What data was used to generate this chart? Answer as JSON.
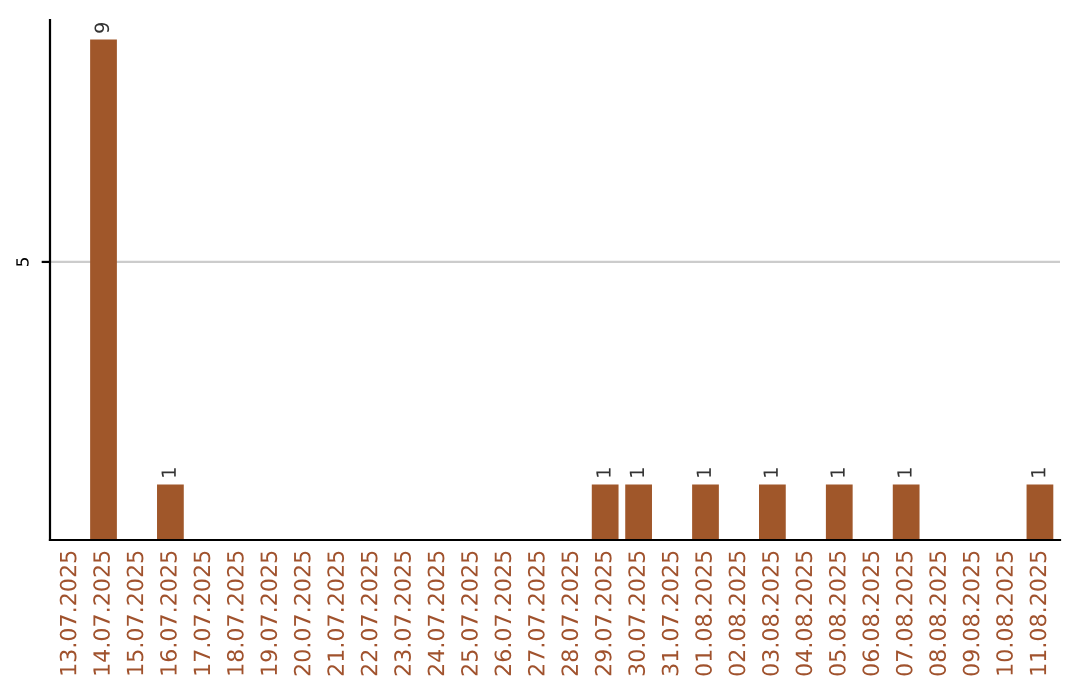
{
  "chart_data": {
    "type": "bar",
    "categories": [
      "13.07.2025",
      "14.07.2025",
      "15.07.2025",
      "16.07.2025",
      "17.07.2025",
      "18.07.2025",
      "19.07.2025",
      "20.07.2025",
      "21.07.2025",
      "22.07.2025",
      "23.07.2025",
      "24.07.2025",
      "25.07.2025",
      "26.07.2025",
      "27.07.2025",
      "28.07.2025",
      "29.07.2025",
      "30.07.2025",
      "31.07.2025",
      "01.08.2025",
      "02.08.2025",
      "03.08.2025",
      "04.08.2025",
      "05.08.2025",
      "06.08.2025",
      "07.08.2025",
      "08.08.2025",
      "09.08.2025",
      "10.08.2025",
      "11.08.2025"
    ],
    "values": [
      null,
      9,
      null,
      1,
      null,
      null,
      null,
      null,
      null,
      null,
      null,
      null,
      null,
      null,
      null,
      null,
      1,
      1,
      null,
      1,
      null,
      1,
      null,
      1,
      null,
      1,
      null,
      null,
      null,
      1
    ],
    "color": "#a0572a",
    "ylim": [
      0,
      9.35
    ],
    "yticks": [
      5
    ],
    "grid": "y",
    "data_labels": true,
    "legend": false
  }
}
